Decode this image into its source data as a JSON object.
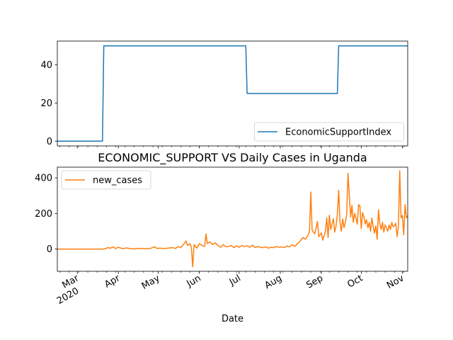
{
  "figure": {
    "title": "ECONOMIC_SUPPORT VS Daily Cases in Uganda",
    "xlabel": "Date"
  },
  "chart_data": [
    {
      "type": "line",
      "series": [
        {
          "name": "EconomicSupportIndex",
          "color": "#1f77b4",
          "points": [
            [
              "2020-02-15",
              0
            ],
            [
              "2020-03-20",
              0
            ],
            [
              "2020-03-21",
              50
            ],
            [
              "2020-07-06",
              50
            ],
            [
              "2020-07-07",
              25
            ],
            [
              "2020-09-13",
              25
            ],
            [
              "2020-09-14",
              50
            ],
            [
              "2020-11-05",
              50
            ]
          ]
        }
      ],
      "xlim": [
        "2020-02-15",
        "2020-11-05"
      ],
      "ylim": [
        -2.5,
        52.5
      ],
      "yticks": [
        0,
        20,
        40
      ],
      "legend_position": "lower right"
    },
    {
      "type": "line",
      "series": [
        {
          "name": "new_cases",
          "color": "#ff7f0e",
          "points": [
            [
              "2020-02-15",
              0
            ],
            [
              "2020-03-20",
              0
            ],
            [
              "2020-03-22",
              1
            ],
            [
              "2020-03-24",
              8
            ],
            [
              "2020-03-26",
              5
            ],
            [
              "2020-03-28",
              12
            ],
            [
              "2020-03-30",
              3
            ],
            [
              "2020-04-01",
              10
            ],
            [
              "2020-04-04",
              2
            ],
            [
              "2020-04-07",
              6
            ],
            [
              "2020-04-10",
              3
            ],
            [
              "2020-04-13",
              1
            ],
            [
              "2020-04-16",
              4
            ],
            [
              "2020-04-19",
              3
            ],
            [
              "2020-04-22",
              2
            ],
            [
              "2020-04-25",
              3
            ],
            [
              "2020-04-28",
              12
            ],
            [
              "2020-04-30",
              4
            ],
            [
              "2020-05-03",
              5
            ],
            [
              "2020-05-06",
              3
            ],
            [
              "2020-05-09",
              6
            ],
            [
              "2020-05-12",
              8
            ],
            [
              "2020-05-14",
              3
            ],
            [
              "2020-05-16",
              14
            ],
            [
              "2020-05-18",
              8
            ],
            [
              "2020-05-20",
              25
            ],
            [
              "2020-05-22",
              45
            ],
            [
              "2020-05-23",
              20
            ],
            [
              "2020-05-25",
              30
            ],
            [
              "2020-05-26",
              10
            ],
            [
              "2020-05-27",
              -100
            ],
            [
              "2020-05-28",
              25
            ],
            [
              "2020-05-30",
              5
            ],
            [
              "2020-06-01",
              30
            ],
            [
              "2020-06-03",
              20
            ],
            [
              "2020-06-05",
              15
            ],
            [
              "2020-06-06",
              85
            ],
            [
              "2020-06-07",
              30
            ],
            [
              "2020-06-09",
              40
            ],
            [
              "2020-06-11",
              25
            ],
            [
              "2020-06-13",
              35
            ],
            [
              "2020-06-15",
              20
            ],
            [
              "2020-06-17",
              10
            ],
            [
              "2020-06-19",
              25
            ],
            [
              "2020-06-21",
              12
            ],
            [
              "2020-06-23",
              15
            ],
            [
              "2020-06-25",
              20
            ],
            [
              "2020-06-27",
              8
            ],
            [
              "2020-06-29",
              18
            ],
            [
              "2020-07-01",
              10
            ],
            [
              "2020-07-03",
              20
            ],
            [
              "2020-07-05",
              14
            ],
            [
              "2020-07-07",
              18
            ],
            [
              "2020-07-09",
              10
            ],
            [
              "2020-07-11",
              22
            ],
            [
              "2020-07-13",
              8
            ],
            [
              "2020-07-15",
              14
            ],
            [
              "2020-07-17",
              10
            ],
            [
              "2020-07-19",
              8
            ],
            [
              "2020-07-21",
              12
            ],
            [
              "2020-07-23",
              5
            ],
            [
              "2020-07-25",
              10
            ],
            [
              "2020-07-27",
              8
            ],
            [
              "2020-07-29",
              14
            ],
            [
              "2020-07-31",
              10
            ],
            [
              "2020-08-02",
              12
            ],
            [
              "2020-08-04",
              8
            ],
            [
              "2020-08-06",
              18
            ],
            [
              "2020-08-08",
              12
            ],
            [
              "2020-08-10",
              25
            ],
            [
              "2020-08-12",
              15
            ],
            [
              "2020-08-14",
              30
            ],
            [
              "2020-08-16",
              45
            ],
            [
              "2020-08-18",
              65
            ],
            [
              "2020-08-20",
              55
            ],
            [
              "2020-08-22",
              80
            ],
            [
              "2020-08-23",
              100
            ],
            [
              "2020-08-24",
              320
            ],
            [
              "2020-08-25",
              105
            ],
            [
              "2020-08-27",
              85
            ],
            [
              "2020-08-29",
              155
            ],
            [
              "2020-08-30",
              70
            ],
            [
              "2020-09-01",
              90
            ],
            [
              "2020-09-02",
              50
            ],
            [
              "2020-09-04",
              100
            ],
            [
              "2020-09-05",
              175
            ],
            [
              "2020-09-06",
              65
            ],
            [
              "2020-09-07",
              190
            ],
            [
              "2020-09-08",
              110
            ],
            [
              "2020-09-10",
              170
            ],
            [
              "2020-09-11",
              95
            ],
            [
              "2020-09-12",
              130
            ],
            [
              "2020-09-13",
              195
            ],
            [
              "2020-09-14",
              330
            ],
            [
              "2020-09-15",
              150
            ],
            [
              "2020-09-16",
              100
            ],
            [
              "2020-09-17",
              170
            ],
            [
              "2020-09-18",
              120
            ],
            [
              "2020-09-19",
              150
            ],
            [
              "2020-09-20",
              190
            ],
            [
              "2020-09-21",
              425
            ],
            [
              "2020-09-22",
              300
            ],
            [
              "2020-09-23",
              180
            ],
            [
              "2020-09-24",
              245
            ],
            [
              "2020-09-25",
              150
            ],
            [
              "2020-09-26",
              200
            ],
            [
              "2020-09-27",
              175
            ],
            [
              "2020-09-28",
              140
            ],
            [
              "2020-09-29",
              250
            ],
            [
              "2020-09-30",
              240
            ],
            [
              "2020-10-01",
              115
            ],
            [
              "2020-10-02",
              205
            ],
            [
              "2020-10-03",
              180
            ],
            [
              "2020-10-04",
              140
            ],
            [
              "2020-10-05",
              165
            ],
            [
              "2020-10-06",
              120
            ],
            [
              "2020-10-07",
              150
            ],
            [
              "2020-10-08",
              100
            ],
            [
              "2020-10-09",
              175
            ],
            [
              "2020-10-10",
              125
            ],
            [
              "2020-10-11",
              90
            ],
            [
              "2020-10-12",
              130
            ],
            [
              "2020-10-13",
              55
            ],
            [
              "2020-10-14",
              220
            ],
            [
              "2020-10-15",
              140
            ],
            [
              "2020-10-16",
              110
            ],
            [
              "2020-10-17",
              150
            ],
            [
              "2020-10-18",
              95
            ],
            [
              "2020-10-19",
              135
            ],
            [
              "2020-10-20",
              120
            ],
            [
              "2020-10-21",
              100
            ],
            [
              "2020-10-22",
              135
            ],
            [
              "2020-10-23",
              110
            ],
            [
              "2020-10-24",
              150
            ],
            [
              "2020-10-25",
              125
            ],
            [
              "2020-10-26",
              130
            ],
            [
              "2020-10-27",
              145
            ],
            [
              "2020-10-28",
              70
            ],
            [
              "2020-10-29",
              125
            ],
            [
              "2020-10-30",
              440
            ],
            [
              "2020-10-31",
              175
            ],
            [
              "2020-11-01",
              190
            ],
            [
              "2020-11-02",
              80
            ],
            [
              "2020-11-03",
              250
            ],
            [
              "2020-11-04",
              175
            ],
            [
              "2020-11-05",
              185
            ]
          ]
        }
      ],
      "xlim": [
        "2020-02-15",
        "2020-11-05"
      ],
      "ylim": [
        -125,
        460
      ],
      "yticks": [
        0,
        200,
        400
      ],
      "xticks": [
        {
          "date": "2020-03-01",
          "label": "Mar",
          "sublabel": "2020"
        },
        {
          "date": "2020-04-01",
          "label": "Apr",
          "sublabel": ""
        },
        {
          "date": "2020-05-01",
          "label": "May",
          "sublabel": ""
        },
        {
          "date": "2020-06-01",
          "label": "Jun",
          "sublabel": ""
        },
        {
          "date": "2020-07-01",
          "label": "Jul",
          "sublabel": ""
        },
        {
          "date": "2020-08-01",
          "label": "Aug",
          "sublabel": ""
        },
        {
          "date": "2020-09-01",
          "label": "Sep",
          "sublabel": ""
        },
        {
          "date": "2020-10-01",
          "label": "Oct",
          "sublabel": ""
        },
        {
          "date": "2020-11-01",
          "label": "Nov",
          "sublabel": ""
        }
      ],
      "legend_position": "upper left"
    }
  ]
}
